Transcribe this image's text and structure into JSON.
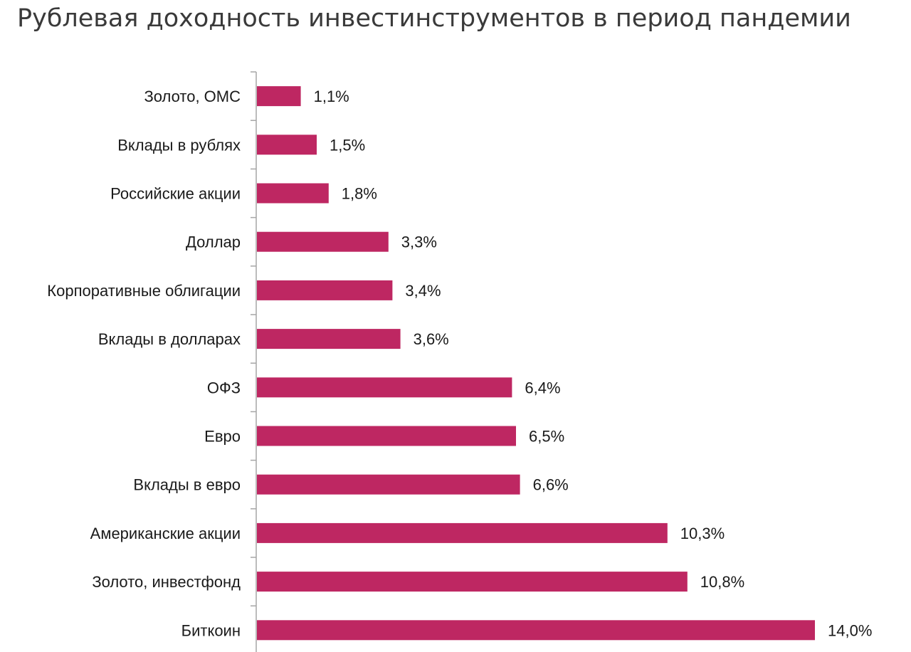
{
  "chart_data": {
    "type": "bar",
    "orientation": "horizontal",
    "title": "Рублевая доходность инвестинструментов в период пандемии",
    "categories": [
      "Золото, ОМС",
      "Вклады в рублях",
      "Российские акции",
      "Доллар",
      "Корпоративные облигации",
      "Вклады в долларах",
      "ОФЗ",
      "Евро",
      "Вклады в евро",
      "Американские акции",
      "Золото, инвестфонд",
      "Биткоин"
    ],
    "values": [
      1.1,
      1.5,
      1.8,
      3.3,
      3.4,
      3.6,
      6.4,
      6.5,
      6.6,
      10.3,
      10.8,
      14.0
    ],
    "value_labels": [
      "1,1%",
      "1,5%",
      "1,8%",
      "3,3%",
      "3,4%",
      "3,6%",
      "6,4%",
      "6,5%",
      "6,6%",
      "10,3%",
      "10,8%",
      "14,0%"
    ],
    "unit": "%",
    "xlim": [
      0,
      14
    ],
    "grid": false,
    "legend": "none",
    "bar_color": "#be2762",
    "axis_color": "#a6a6a6"
  }
}
